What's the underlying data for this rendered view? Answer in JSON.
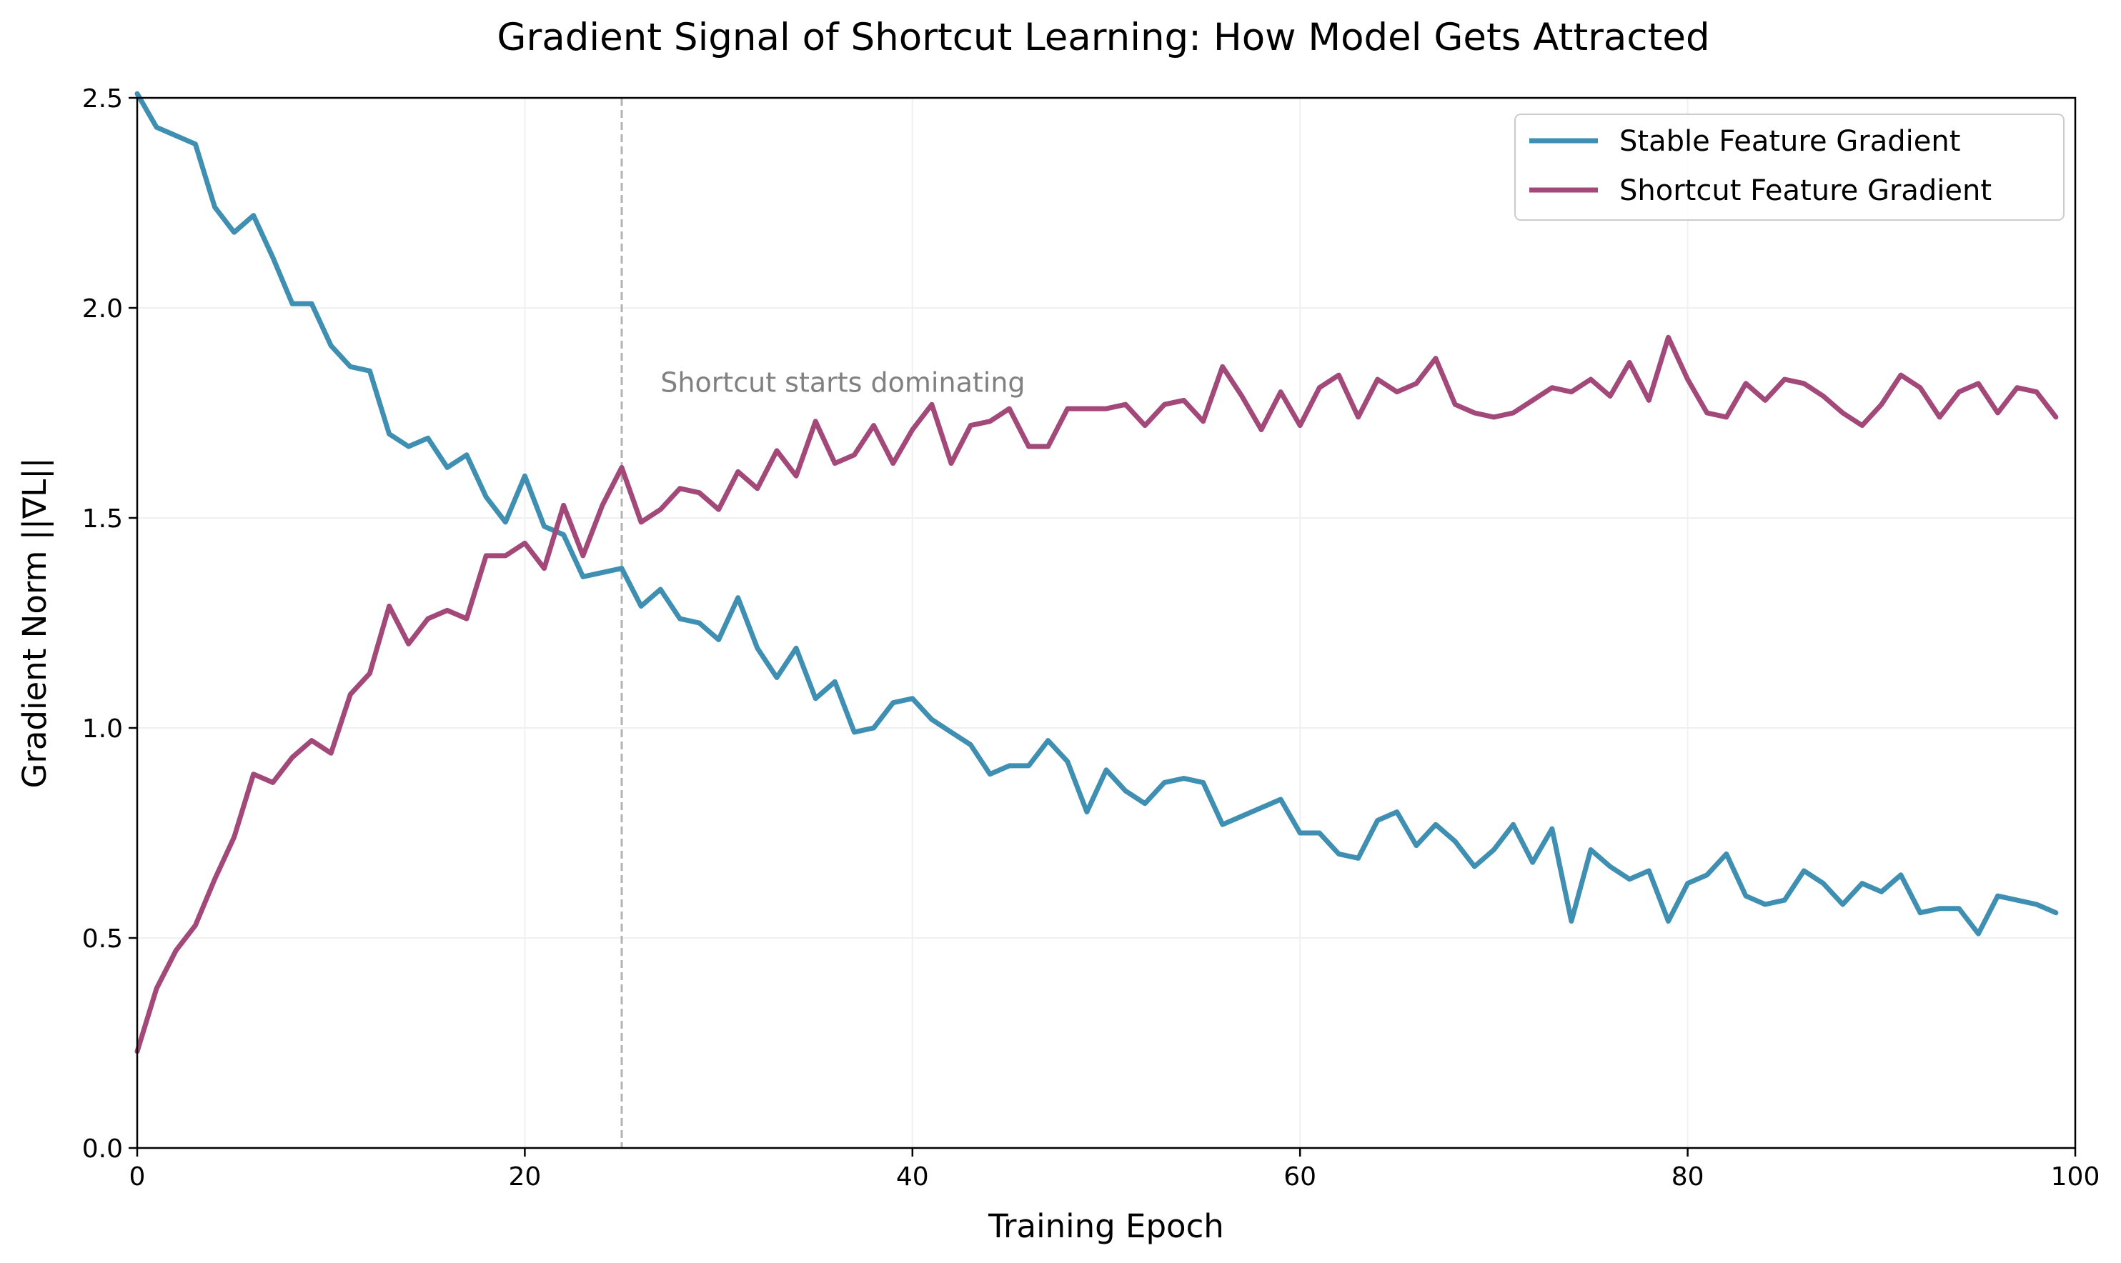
{
  "chart_data": {
    "type": "line",
    "title": "Gradient Signal of Shortcut Learning: How Model Gets Attracted",
    "xlabel": "Training Epoch",
    "ylabel": "Gradient Norm ||∇L||",
    "xlim": [
      0,
      100
    ],
    "ylim": [
      0,
      2.5
    ],
    "xticks": [
      0,
      20,
      40,
      60,
      80,
      100
    ],
    "xtick_labels": [
      "0",
      "20",
      "40",
      "60",
      "80",
      "100"
    ],
    "yticks": [
      0,
      0.5,
      1.0,
      1.5,
      2.0,
      2.5
    ],
    "ytick_labels": [
      "0.0",
      "0.5",
      "1.0",
      "1.5",
      "2.0",
      "2.5"
    ],
    "grid": true,
    "legend_position": "top-right",
    "x": [
      0,
      1,
      2,
      3,
      4,
      5,
      6,
      7,
      8,
      9,
      10,
      11,
      12,
      13,
      14,
      15,
      16,
      17,
      18,
      19,
      20,
      21,
      22,
      23,
      24,
      25,
      26,
      27,
      28,
      29,
      30,
      31,
      32,
      33,
      34,
      35,
      36,
      37,
      38,
      39,
      40,
      41,
      42,
      43,
      44,
      45,
      46,
      47,
      48,
      49,
      50,
      51,
      52,
      53,
      54,
      55,
      56,
      57,
      58,
      59,
      60,
      61,
      62,
      63,
      64,
      65,
      66,
      67,
      68,
      69,
      70,
      71,
      72,
      73,
      74,
      75,
      76,
      77,
      78,
      79,
      80,
      81,
      82,
      83,
      84,
      85,
      86,
      87,
      88,
      89,
      90,
      91,
      92,
      93,
      94,
      95,
      96,
      97,
      98,
      99
    ],
    "series": [
      {
        "name": "Stable Feature Gradient",
        "color": "#3f8fb3",
        "values": [
          2.51,
          2.43,
          2.41,
          2.39,
          2.24,
          2.18,
          2.22,
          2.12,
          2.01,
          2.01,
          1.91,
          1.86,
          1.85,
          1.7,
          1.67,
          1.69,
          1.62,
          1.65,
          1.55,
          1.49,
          1.6,
          1.48,
          1.46,
          1.36,
          1.37,
          1.38,
          1.29,
          1.33,
          1.26,
          1.25,
          1.21,
          1.31,
          1.19,
          1.12,
          1.19,
          1.07,
          1.11,
          0.99,
          1.0,
          1.06,
          1.07,
          1.02,
          0.99,
          0.96,
          0.89,
          0.91,
          0.91,
          0.97,
          0.92,
          0.8,
          0.9,
          0.85,
          0.82,
          0.87,
          0.88,
          0.87,
          0.77,
          0.79,
          0.81,
          0.83,
          0.75,
          0.75,
          0.7,
          0.69,
          0.78,
          0.8,
          0.72,
          0.77,
          0.73,
          0.67,
          0.71,
          0.77,
          0.68,
          0.76,
          0.54,
          0.71,
          0.67,
          0.64,
          0.66,
          0.54,
          0.63,
          0.65,
          0.7,
          0.6,
          0.58,
          0.59,
          0.66,
          0.63,
          0.58,
          0.63,
          0.61,
          0.65,
          0.56,
          0.57,
          0.57,
          0.51,
          0.6,
          0.59,
          0.58,
          0.56
        ]
      },
      {
        "name": "Shortcut Feature Gradient",
        "color": "#a3497a",
        "values": [
          0.23,
          0.38,
          0.47,
          0.53,
          0.64,
          0.74,
          0.89,
          0.87,
          0.93,
          0.97,
          0.94,
          1.08,
          1.13,
          1.29,
          1.2,
          1.26,
          1.28,
          1.26,
          1.41,
          1.41,
          1.44,
          1.38,
          1.53,
          1.41,
          1.53,
          1.62,
          1.49,
          1.52,
          1.57,
          1.56,
          1.52,
          1.61,
          1.57,
          1.66,
          1.6,
          1.73,
          1.63,
          1.65,
          1.72,
          1.63,
          1.71,
          1.77,
          1.63,
          1.72,
          1.73,
          1.76,
          1.67,
          1.67,
          1.76,
          1.76,
          1.76,
          1.77,
          1.72,
          1.77,
          1.78,
          1.73,
          1.86,
          1.79,
          1.71,
          1.8,
          1.72,
          1.81,
          1.84,
          1.74,
          1.83,
          1.8,
          1.82,
          1.88,
          1.77,
          1.75,
          1.74,
          1.75,
          1.78,
          1.81,
          1.8,
          1.83,
          1.79,
          1.87,
          1.78,
          1.93,
          1.83,
          1.75,
          1.74,
          1.82,
          1.78,
          1.83,
          1.82,
          1.79,
          1.75,
          1.72,
          1.77,
          1.84,
          1.81,
          1.74,
          1.8,
          1.82,
          1.75,
          1.81,
          1.8,
          1.74
        ]
      }
    ],
    "annotations": [
      {
        "type": "vline",
        "x": 25,
        "style": "dashed",
        "color": "#b3b3b3"
      },
      {
        "type": "text",
        "text": "Shortcut starts dominating",
        "x": 27,
        "y": 1.8,
        "color": "#808080"
      }
    ]
  }
}
